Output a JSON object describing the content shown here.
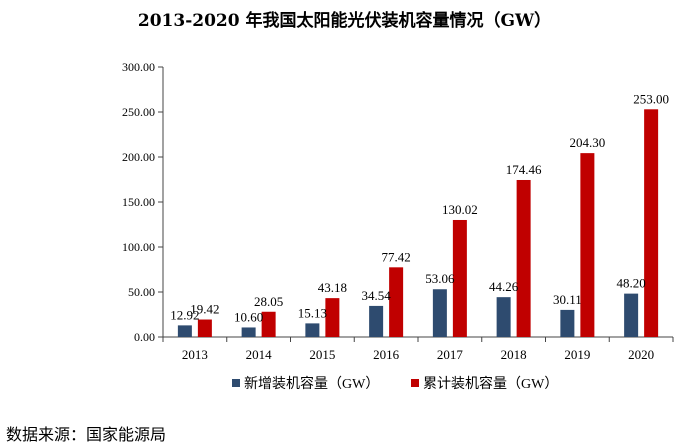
{
  "chart_data": {
    "type": "bar",
    "title": "2013-2020 年我国太阳能光伏装机容量情况（GW）",
    "categories": [
      "2013",
      "2014",
      "2015",
      "2016",
      "2017",
      "2018",
      "2019",
      "2020"
    ],
    "series": [
      {
        "name": "新增装机容量（GW）",
        "color": "#2E4B6F",
        "values": [
          12.92,
          10.6,
          15.13,
          34.54,
          53.06,
          44.26,
          30.11,
          48.2
        ],
        "labels": [
          "12.92",
          "10.60",
          "15.13",
          "34.54",
          "53.06",
          "44.26",
          "30.11",
          "48.20"
        ]
      },
      {
        "name": "累计装机容量（GW）",
        "color": "#C00000",
        "values": [
          19.42,
          28.05,
          43.18,
          77.42,
          130.02,
          174.46,
          204.3,
          253.0
        ],
        "labels": [
          "19.42",
          "28.05",
          "43.18",
          "77.42",
          "130.02",
          "174.46",
          "204.30",
          "253.00"
        ]
      }
    ],
    "y_ticks": [
      "0.00",
      "50.00",
      "100.00",
      "150.00",
      "200.00",
      "250.00",
      "300.00"
    ],
    "ylim": [
      0,
      300
    ],
    "grid": false,
    "legend_position": "bottom"
  },
  "source_note": "数据来源：国家能源局"
}
